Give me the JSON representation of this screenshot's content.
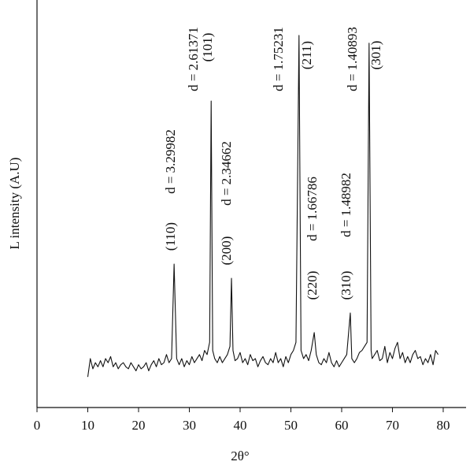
{
  "chart_data": {
    "type": "line",
    "xlabel": "2θ°",
    "ylabel": "L intensity (A.U)",
    "xlim": [
      0,
      84.5
    ],
    "xticks": [
      0,
      10,
      20,
      30,
      40,
      50,
      60,
      70,
      80
    ],
    "ylim": [
      0,
      100
    ],
    "grid": false,
    "annotations": [
      "(110)",
      "d = 3.29982",
      "d = 2.61371",
      "(101)",
      "(200)",
      "d = 2.34662",
      "d = 1.75231",
      "(211)",
      "(220)",
      "d = 1.66786",
      "(310)",
      "d = 1.48982",
      "d = 1.40893",
      "(301)"
    ],
    "x": [
      10,
      10.5,
      11,
      11.5,
      12,
      12.5,
      13,
      13.5,
      14,
      14.5,
      15,
      15.5,
      16,
      16.5,
      17,
      17.5,
      18,
      18.5,
      19,
      19.5,
      20,
      20.5,
      21,
      21.5,
      22,
      22.5,
      23,
      23.5,
      24,
      24.5,
      25,
      25.5,
      26,
      26.5,
      27,
      27.5,
      28,
      28.5,
      29,
      29.5,
      30,
      30.5,
      31,
      31.5,
      32,
      32.5,
      33,
      33.5,
      34,
      34.3,
      34.6,
      35,
      35.5,
      36,
      36.5,
      37,
      37.5,
      38,
      38.3,
      38.6,
      39,
      39.5,
      40,
      40.5,
      41,
      41.5,
      42,
      42.5,
      43,
      43.5,
      44,
      44.5,
      45,
      45.5,
      46,
      46.5,
      47,
      47.5,
      48,
      48.5,
      49,
      49.5,
      50,
      50.5,
      51,
      51.6,
      52,
      52.5,
      53,
      53.5,
      54,
      54.6,
      55,
      55.5,
      56,
      56.5,
      57,
      57.5,
      58,
      58.5,
      59,
      59.5,
      60,
      60.5,
      61,
      61.7,
      62,
      62.5,
      63,
      63.5,
      64,
      64.5,
      65,
      65.4,
      65.8,
      66,
      66.5,
      67,
      67.5,
      68,
      68.5,
      69,
      69.5,
      70,
      70.5,
      71,
      71.5,
      72,
      72.5,
      73,
      73.5,
      74,
      74.5,
      75,
      75.5,
      76,
      76.5,
      77,
      77.5,
      78,
      78.5,
      79
    ],
    "series": [
      {
        "color": "#111111",
        "values": [
          7.5,
          12,
          9.5,
          11,
          10,
          11.5,
          10,
          12,
          11,
          12.5,
          10,
          11,
          9.5,
          10.5,
          11,
          10,
          9.5,
          11,
          10,
          9,
          10.5,
          9.5,
          10,
          11,
          9,
          10.5,
          11.5,
          10,
          12,
          10.5,
          11,
          13,
          11,
          12,
          35.2,
          12,
          10.5,
          12,
          10,
          11.5,
          10.5,
          12.5,
          11,
          12,
          13,
          11.5,
          14,
          13,
          16,
          75.2,
          14,
          12,
          11,
          12.5,
          11,
          12,
          13,
          15,
          31.7,
          14,
          11.5,
          12,
          13.5,
          11,
          12,
          10.5,
          13,
          11.5,
          12,
          10,
          11.5,
          12.5,
          11,
          10.5,
          12,
          11,
          13.5,
          11,
          12,
          10,
          12.5,
          11,
          13,
          14,
          16,
          91.3,
          14,
          12,
          13,
          11.5,
          14,
          18.4,
          13,
          11,
          10.5,
          12,
          11,
          13.5,
          11,
          10,
          11.5,
          10,
          11,
          12,
          13,
          23.2,
          12,
          11,
          12,
          13.5,
          14,
          15,
          16,
          89.4,
          14,
          12,
          13,
          14,
          11.5,
          12,
          15,
          11,
          13.5,
          12,
          14.5,
          16,
          12,
          13.5,
          11,
          12.5,
          11,
          13,
          14,
          12,
          12.5,
          10.5,
          12,
          11,
          13,
          10.5,
          14,
          13
        ]
      }
    ]
  }
}
